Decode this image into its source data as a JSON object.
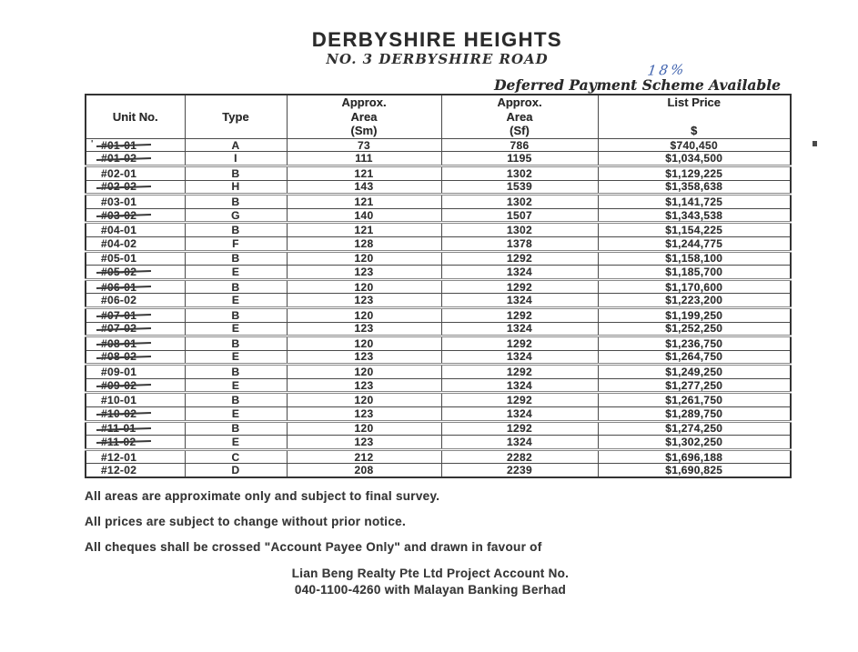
{
  "document": {
    "title": "DERBYSHIRE HEIGHTS",
    "subtitle": "NO. 3 DERBYSHIRE ROAD",
    "handwritten_note": "18%",
    "scheme_note": "Deferred Payment Scheme Available",
    "notes": [
      "All areas are approximate only and subject to final survey.",
      "All prices are subject to change without prior notice.",
      "All cheques shall be crossed \"Account Payee Only\" and drawn in favour of"
    ],
    "account_lines": [
      "Lian Beng Realty Pte Ltd Project Account No.",
      "040-1100-4260 with Malayan Banking Berhad"
    ]
  },
  "colors": {
    "ink": "#333333",
    "handwriting_blue": "#3f62ae"
  },
  "table": {
    "stray_mark": "'",
    "headers": {
      "unit": "Unit No.",
      "type": "Type",
      "area_sm": "Approx.\nArea\n(Sm)",
      "area_sf": "Approx.\nArea\n(Sf)",
      "price": "List Price\n\n$"
    },
    "rows": [
      {
        "unit": "#01-01",
        "type": "A",
        "sm": "73",
        "sf": "786",
        "price": "$740,450",
        "struck": true
      },
      {
        "unit": "#01-02",
        "type": "I",
        "sm": "111",
        "sf": "1195",
        "price": "$1,034,500",
        "struck": true
      },
      {
        "unit": "#02-01",
        "type": "B",
        "sm": "121",
        "sf": "1302",
        "price": "$1,129,225",
        "struck": false
      },
      {
        "unit": "#02-02",
        "type": "H",
        "sm": "143",
        "sf": "1539",
        "price": "$1,358,638",
        "struck": true
      },
      {
        "unit": "#03-01",
        "type": "B",
        "sm": "121",
        "sf": "1302",
        "price": "$1,141,725",
        "struck": false
      },
      {
        "unit": "#03-02",
        "type": "G",
        "sm": "140",
        "sf": "1507",
        "price": "$1,343,538",
        "struck": true
      },
      {
        "unit": "#04-01",
        "type": "B",
        "sm": "121",
        "sf": "1302",
        "price": "$1,154,225",
        "struck": false
      },
      {
        "unit": "#04-02",
        "type": "F",
        "sm": "128",
        "sf": "1378",
        "price": "$1,244,775",
        "struck": false
      },
      {
        "unit": "#05-01",
        "type": "B",
        "sm": "120",
        "sf": "1292",
        "price": "$1,158,100",
        "struck": false
      },
      {
        "unit": "#05-02",
        "type": "E",
        "sm": "123",
        "sf": "1324",
        "price": "$1,185,700",
        "struck": true
      },
      {
        "unit": "#06-01",
        "type": "B",
        "sm": "120",
        "sf": "1292",
        "price": "$1,170,600",
        "struck": true
      },
      {
        "unit": "#06-02",
        "type": "E",
        "sm": "123",
        "sf": "1324",
        "price": "$1,223,200",
        "struck": false
      },
      {
        "unit": "#07-01",
        "type": "B",
        "sm": "120",
        "sf": "1292",
        "price": "$1,199,250",
        "struck": true
      },
      {
        "unit": "#07-02",
        "type": "E",
        "sm": "123",
        "sf": "1324",
        "price": "$1,252,250",
        "struck": true
      },
      {
        "unit": "#08-01",
        "type": "B",
        "sm": "120",
        "sf": "1292",
        "price": "$1,236,750",
        "struck": true
      },
      {
        "unit": "#08-02",
        "type": "E",
        "sm": "123",
        "sf": "1324",
        "price": "$1,264,750",
        "struck": true
      },
      {
        "unit": "#09-01",
        "type": "B",
        "sm": "120",
        "sf": "1292",
        "price": "$1,249,250",
        "struck": false
      },
      {
        "unit": "#09-02",
        "type": "E",
        "sm": "123",
        "sf": "1324",
        "price": "$1,277,250",
        "struck": true
      },
      {
        "unit": "#10-01",
        "type": "B",
        "sm": "120",
        "sf": "1292",
        "price": "$1,261,750",
        "struck": false
      },
      {
        "unit": "#10-02",
        "type": "E",
        "sm": "123",
        "sf": "1324",
        "price": "$1,289,750",
        "struck": true
      },
      {
        "unit": "#11-01",
        "type": "B",
        "sm": "120",
        "sf": "1292",
        "price": "$1,274,250",
        "struck": true
      },
      {
        "unit": "#11-02",
        "type": "E",
        "sm": "123",
        "sf": "1324",
        "price": "$1,302,250",
        "struck": true
      },
      {
        "unit": "#12-01",
        "type": "C",
        "sm": "212",
        "sf": "2282",
        "price": "$1,696,188",
        "struck": false
      },
      {
        "unit": "#12-02",
        "type": "D",
        "sm": "208",
        "sf": "2239",
        "price": "$1,690,825",
        "struck": false
      }
    ]
  }
}
